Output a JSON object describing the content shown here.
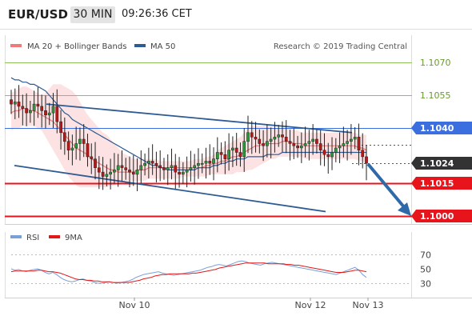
{
  "header": {
    "pair": "EUR/USD",
    "timeframe": "30 MIN",
    "time": "09:26:36 CET"
  },
  "legend": {
    "ma20_label": "MA 20 + Bollinger Bands",
    "ma50_label": "MA 50",
    "research_label": "Research © 2019 Trading Central"
  },
  "rsi_legend": {
    "rsi_label": "RSI",
    "ma9_label": "9MA"
  },
  "colors": {
    "ma20": "#f07a7a",
    "ma50": "#2e5b94",
    "resistance": "#8fbf5a",
    "pivot": "#3b6fe0",
    "support": "#e8141c",
    "current": "#333333",
    "arrow": "#2f6aa8",
    "candle_up": "#2a9a3a",
    "candle_down": "#b81818",
    "rsi": "#7aa0d8",
    "rsi_ma": "#e01818"
  },
  "chart_data": {
    "type": "candlestick",
    "x_tick_labels": [
      "Nov 10",
      "Nov 12",
      "Nov 13"
    ],
    "price_levels": [
      {
        "label": "1.1070",
        "value": 1.107,
        "kind": "resistance"
      },
      {
        "label": "1.1055",
        "value": 1.1055,
        "kind": "resistance"
      },
      {
        "label": "1.1040",
        "value": 1.104,
        "kind": "pivot"
      },
      {
        "label": "1.1024",
        "value": 1.1024,
        "kind": "current"
      },
      {
        "label": "1.1015",
        "value": 1.1015,
        "kind": "support"
      },
      {
        "label": "1.1000",
        "value": 1.1,
        "kind": "support"
      }
    ],
    "ylim": [
      1.0996,
      1.1077
    ],
    "closes": [
      1.1051,
      1.1052,
      1.105,
      1.1049,
      1.1047,
      1.1048,
      1.1051,
      1.105,
      1.1048,
      1.1046,
      1.1047,
      1.105,
      1.1043,
      1.1038,
      1.1034,
      1.103,
      1.1031,
      1.1033,
      1.1035,
      1.1033,
      1.1027,
      1.1026,
      1.1022,
      1.102,
      1.1018,
      1.1019,
      1.102,
      1.1021,
      1.1023,
      1.1022,
      1.1021,
      1.102,
      1.1019,
      1.1021,
      1.1023,
      1.1024,
      1.1025,
      1.1024,
      1.1023,
      1.1022,
      1.1021,
      1.1022,
      1.1023,
      1.102,
      1.1019,
      1.102,
      1.1021,
      1.1022,
      1.1023,
      1.1024,
      1.1024,
      1.1025,
      1.1024,
      1.1026,
      1.1029,
      1.1028,
      1.1026,
      1.103,
      1.1031,
      1.1029,
      1.1027,
      1.1034,
      1.1038,
      1.1036,
      1.1035,
      1.1033,
      1.1032,
      1.1034,
      1.1035,
      1.1036,
      1.1037,
      1.1036,
      1.1034,
      1.1033,
      1.1032,
      1.1031,
      1.1032,
      1.1033,
      1.1034,
      1.1035,
      1.1033,
      1.103,
      1.1028,
      1.1027,
      1.1029,
      1.1031,
      1.1032,
      1.1033,
      1.1034,
      1.1035,
      1.1036,
      1.103,
      1.1027,
      1.1024
    ],
    "ma20": [
      1.1047,
      1.1048,
      1.1048,
      1.1049,
      1.1049,
      1.1048,
      1.1048,
      1.1047,
      1.1046,
      1.1045,
      1.1044,
      1.1043,
      1.1041,
      1.1039,
      1.1037,
      1.1035,
      1.1033,
      1.1031,
      1.103,
      1.1029,
      1.1028,
      1.1026,
      1.1025,
      1.1024,
      1.1023,
      1.1022,
      1.1021,
      1.1021,
      1.102,
      1.102,
      1.102,
      1.102,
      1.102,
      1.1021,
      1.1021,
      1.1021,
      1.1022,
      1.1022,
      1.1022,
      1.1022,
      1.1022,
      1.1022,
      1.1022,
      1.1022,
      1.1022,
      1.1022,
      1.1022,
      1.1022,
      1.1022,
      1.1022,
      1.1022,
      1.1023,
      1.1023,
      1.1024,
      1.1024,
      1.1025,
      1.1025,
      1.1026,
      1.1027,
      1.1027,
      1.1028,
      1.1029,
      1.103,
      1.1031,
      1.1032,
      1.1032,
      1.1033,
      1.1033,
      1.1033,
      1.1033,
      1.1033,
      1.1034,
      1.1034,
      1.1034,
      1.1033,
      1.1033,
      1.1033,
      1.1032,
      1.1032,
      1.1032,
      1.1032,
      1.1032,
      1.1032,
      1.1032,
      1.1032,
      1.1032,
      1.1032,
      1.1032,
      1.1032,
      1.1032,
      1.1032,
      1.1031,
      1.1031,
      1.103
    ],
    "bb_upper": [
      1.1056,
      1.1057,
      1.1058,
      1.1059,
      1.1059,
      1.1058,
      1.1057,
      1.1056,
      1.1055,
      1.1056,
      1.1058,
      1.106,
      1.106,
      1.106,
      1.1059,
      1.1058,
      1.1057,
      1.1055,
      1.1052,
      1.1049,
      1.1046,
      1.1044,
      1.1042,
      1.104,
      1.1038,
      1.1037,
      1.1035,
      1.1033,
      1.1031,
      1.1029,
      1.1028,
      1.1027,
      1.1026,
      1.1026,
      1.1026,
      1.1026,
      1.1026,
      1.1026,
      1.1026,
      1.1025,
      1.1025,
      1.1025,
      1.1025,
      1.1025,
      1.1025,
      1.1025,
      1.1025,
      1.1025,
      1.1026,
      1.1026,
      1.1026,
      1.1027,
      1.1027,
      1.1028,
      1.103,
      1.1031,
      1.1032,
      1.1033,
      1.1034,
      1.1035,
      1.1036,
      1.1038,
      1.104,
      1.1041,
      1.1041,
      1.1041,
      1.1041,
      1.1041,
      1.1041,
      1.104,
      1.104,
      1.104,
      1.104,
      1.104,
      1.1039,
      1.1039,
      1.1038,
      1.1038,
      1.1038,
      1.1038,
      1.1038,
      1.1038,
      1.1038,
      1.1038,
      1.1038,
      1.1038,
      1.1038,
      1.1038,
      1.1038,
      1.1038,
      1.1038,
      1.1037,
      1.1037,
      1.1037
    ],
    "bb_lower": [
      1.1039,
      1.104,
      1.104,
      1.1041,
      1.1041,
      1.1041,
      1.1041,
      1.104,
      1.1039,
      1.1036,
      1.1033,
      1.103,
      1.1027,
      1.1024,
      1.1021,
      1.1018,
      1.1016,
      1.1014,
      1.1013,
      1.1013,
      1.1013,
      1.1013,
      1.1013,
      1.1013,
      1.1013,
      1.1013,
      1.1014,
      1.1014,
      1.1015,
      1.1015,
      1.1016,
      1.1016,
      1.1016,
      1.1016,
      1.1016,
      1.1016,
      1.1017,
      1.1017,
      1.1017,
      1.1017,
      1.1017,
      1.1017,
      1.1017,
      1.1017,
      1.1017,
      1.1018,
      1.1018,
      1.1018,
      1.1018,
      1.1018,
      1.1018,
      1.1018,
      1.1019,
      1.1019,
      1.1019,
      1.1019,
      1.1019,
      1.1019,
      1.1019,
      1.102,
      1.102,
      1.102,
      1.1021,
      1.1021,
      1.1022,
      1.1023,
      1.1024,
      1.1025,
      1.1026,
      1.1026,
      1.1027,
      1.1027,
      1.1027,
      1.1027,
      1.1027,
      1.1027,
      1.1027,
      1.1026,
      1.1026,
      1.1026,
      1.1026,
      1.1026,
      1.1026,
      1.1026,
      1.1026,
      1.1026,
      1.1026,
      1.1026,
      1.1026,
      1.1026,
      1.1026,
      1.1025,
      1.1025,
      1.1024
    ],
    "ma50": [
      1.1063,
      1.1062,
      1.1062,
      1.1061,
      1.1061,
      1.106,
      1.106,
      1.1059,
      1.1058,
      1.1057,
      1.1055,
      1.1053,
      1.1051,
      1.1049,
      1.1047,
      1.1046,
      1.1044,
      1.1043,
      1.1042,
      1.1041,
      1.104,
      1.1039,
      1.1038,
      1.1037,
      1.1036,
      1.1035,
      1.1034,
      1.1033,
      1.1032,
      1.1031,
      1.103,
      1.1029,
      1.1028,
      1.1027,
      1.1026,
      1.1025,
      1.1024,
      1.1023,
      1.1023,
      1.1022,
      1.1022,
      1.1021,
      1.1021,
      1.1021,
      1.1021,
      1.1021,
      1.1021,
      1.1021,
      1.1021,
      1.1022,
      1.1022,
      1.1022,
      1.1022,
      1.1023,
      1.1023,
      1.1024,
      1.1024,
      1.1025,
      1.1025,
      1.1026,
      1.1026,
      1.1026,
      1.1027,
      1.1027,
      1.1027,
      1.1027,
      1.1027,
      1.1028,
      1.1028,
      1.1028,
      1.1028,
      1.1029,
      1.1029,
      1.1029,
      1.1029,
      1.1029,
      1.1029,
      1.1029,
      1.1029,
      1.1029,
      1.1029,
      1.1029,
      1.1029,
      1.1029,
      1.1029,
      1.1029,
      1.1029,
      1.1029,
      1.1029,
      1.1029,
      1.1029,
      1.1029,
      1.1029,
      1.1029
    ],
    "channel_upper": {
      "from": [
        1.1051,
        0.0
      ],
      "to": [
        1.1038,
        1.0
      ]
    },
    "channel_lower": {
      "from": [
        1.1023,
        0.0
      ],
      "to": [
        1.1002,
        1.0
      ]
    },
    "rsi": {
      "ticks": [
        70,
        50,
        30
      ],
      "ylim": [
        22,
        78
      ],
      "values": [
        50,
        48,
        49,
        47,
        46,
        48,
        49,
        50,
        48,
        45,
        43,
        45,
        42,
        38,
        35,
        33,
        32,
        33,
        35,
        36,
        34,
        33,
        31,
        30,
        30,
        31,
        32,
        31,
        30,
        31,
        32,
        33,
        35,
        38,
        40,
        42,
        43,
        44,
        45,
        46,
        44,
        43,
        42,
        41,
        42,
        43,
        44,
        45,
        46,
        47,
        48,
        50,
        52,
        53,
        55,
        56,
        55,
        54,
        56,
        58,
        60,
        61,
        60,
        58,
        57,
        56,
        55,
        57,
        58,
        59,
        58,
        57,
        56,
        55,
        54,
        53,
        52,
        51,
        50,
        49,
        48,
        47,
        46,
        45,
        44,
        43,
        42,
        44,
        46,
        48,
        50,
        52,
        48,
        42,
        38
      ],
      "ma9": [
        46,
        47,
        47,
        47,
        47,
        47,
        47,
        48,
        48,
        47,
        46,
        46,
        45,
        44,
        42,
        40,
        38,
        36,
        35,
        35,
        34,
        34,
        33,
        33,
        32,
        32,
        32,
        31,
        31,
        31,
        31,
        31,
        32,
        33,
        34,
        36,
        37,
        38,
        40,
        41,
        42,
        42,
        43,
        43,
        43,
        43,
        43,
        43,
        44,
        44,
        45,
        46,
        47,
        48,
        49,
        51,
        52,
        53,
        54,
        55,
        56,
        57,
        58,
        58,
        58,
        58,
        58,
        58,
        57,
        57,
        57,
        57,
        57,
        56,
        56,
        55,
        55,
        54,
        53,
        52,
        51,
        50,
        49,
        48,
        47,
        46,
        45,
        45,
        45,
        46,
        47,
        48,
        48,
        47,
        46
      ]
    }
  }
}
